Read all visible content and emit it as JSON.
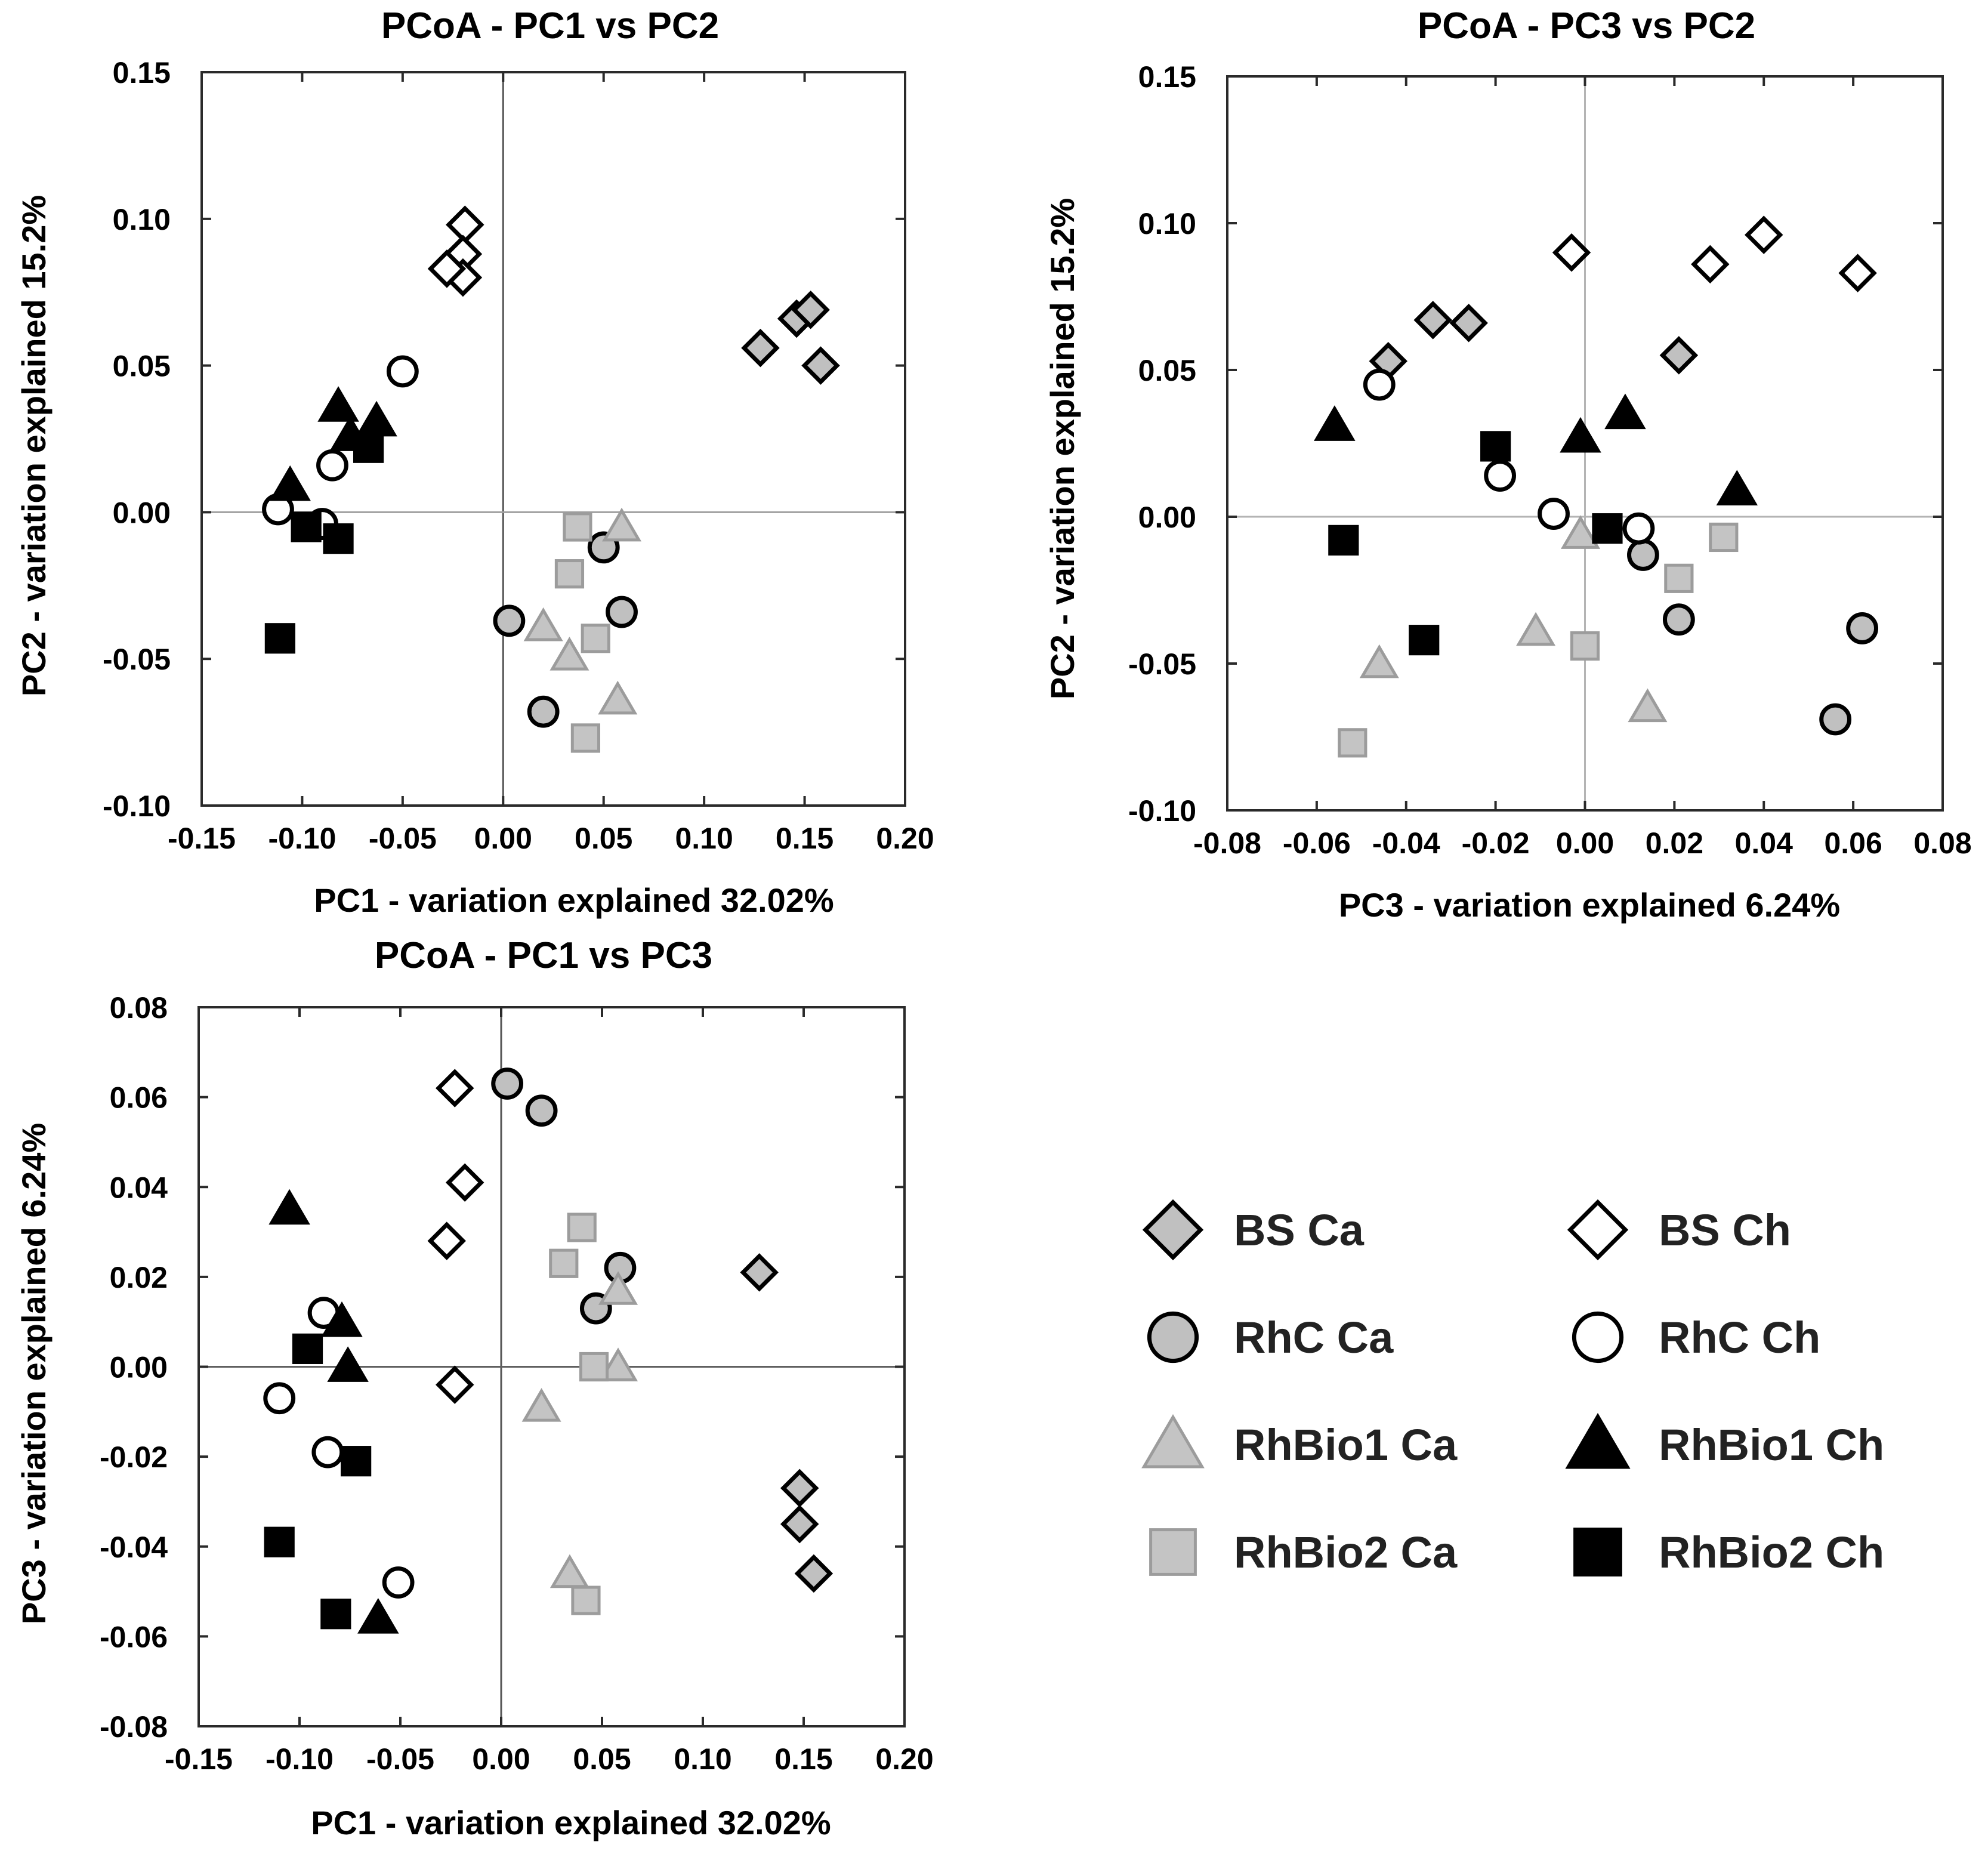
{
  "styles": {
    "BS Ca": {
      "shape": "diamond",
      "fill": "#c0c0c0",
      "stroke": "#000000"
    },
    "BS Ch": {
      "shape": "diamond",
      "fill": "#ffffff",
      "stroke": "#000000"
    },
    "RhC Ca": {
      "shape": "circle",
      "fill": "#c0c0c0",
      "stroke": "#000000"
    },
    "RhC Ch": {
      "shape": "circle",
      "fill": "#ffffff",
      "stroke": "#000000"
    },
    "RhBio1 Ca": {
      "shape": "triangle",
      "fill": "#c4c4c4",
      "stroke": "#9c9c9c"
    },
    "RhBio1 Ch": {
      "shape": "triangle",
      "fill": "#000000",
      "stroke": "#000000"
    },
    "RhBio2 Ca": {
      "shape": "square",
      "fill": "#c4c4c4",
      "stroke": "#9c9c9c"
    },
    "RhBio2 Ch": {
      "shape": "square",
      "fill": "#000000",
      "stroke": "#000000"
    }
  },
  "legend": {
    "items": [
      "BS Ca",
      "BS Ch",
      "RhC Ca",
      "RhC Ch",
      "RhBio1 Ca",
      "RhBio1 Ch",
      "RhBio2 Ca",
      "RhBio2 Ch"
    ]
  },
  "chart_data": [
    {
      "type": "scatter",
      "title": "PCoA - PC1 vs PC2",
      "xlabel": "PC1 - variation explained 32.02%",
      "ylabel": "PC2 - variation explained 15.2%",
      "xlim": [
        -0.15,
        0.2
      ],
      "ylim": [
        -0.1,
        0.15
      ],
      "xticks": [
        "-0.15",
        "-0.10",
        "-0.05",
        "0.00",
        "0.05",
        "0.10",
        "0.15",
        "0.20"
      ],
      "yticks": [
        "-0.10",
        "-0.05",
        "0.00",
        "0.05",
        "0.10",
        "0.15"
      ],
      "zero_lines": true,
      "series": [
        {
          "name": "BS Ca",
          "points": [
            [
              0.128,
              0.056
            ],
            [
              0.146,
              0.066
            ],
            [
              0.153,
              0.069
            ],
            [
              0.158,
              0.05
            ]
          ]
        },
        {
          "name": "BS Ch",
          "points": [
            [
              -0.019,
              0.098
            ],
            [
              -0.02,
              0.088
            ],
            [
              -0.02,
              0.08
            ],
            [
              -0.028,
              0.083
            ]
          ]
        },
        {
          "name": "RhC Ca",
          "points": [
            [
              0.003,
              -0.037
            ],
            [
              0.05,
              -0.012
            ],
            [
              0.059,
              -0.034
            ],
            [
              0.02,
              -0.068
            ]
          ]
        },
        {
          "name": "RhC Ch",
          "points": [
            [
              -0.05,
              0.048
            ],
            [
              -0.085,
              0.016
            ],
            [
              -0.112,
              0.001
            ],
            [
              -0.09,
              -0.004
            ]
          ]
        },
        {
          "name": "RhBio1 Ca",
          "points": [
            [
              0.059,
              -0.005
            ],
            [
              0.02,
              -0.039
            ],
            [
              0.033,
              -0.049
            ],
            [
              0.057,
              -0.064
            ]
          ]
        },
        {
          "name": "RhBio1 Ch",
          "points": [
            [
              -0.082,
              0.036
            ],
            [
              -0.063,
              0.031
            ],
            [
              -0.076,
              0.026
            ],
            [
              -0.106,
              0.009
            ]
          ]
        },
        {
          "name": "RhBio2 Ca",
          "points": [
            [
              0.037,
              -0.005
            ],
            [
              0.033,
              -0.021
            ],
            [
              0.046,
              -0.043
            ],
            [
              0.041,
              -0.077
            ]
          ]
        },
        {
          "name": "RhBio2 Ch",
          "points": [
            [
              -0.067,
              0.022
            ],
            [
              -0.098,
              -0.005
            ],
            [
              -0.082,
              -0.009
            ],
            [
              -0.111,
              -0.043
            ]
          ]
        }
      ]
    },
    {
      "type": "scatter",
      "title": "PCoA - PC3 vs PC2",
      "xlabel": "PC3 - variation explained 6.24%",
      "ylabel": "PC2 - variation explained 15.2%",
      "xlim": [
        -0.08,
        0.08
      ],
      "ylim": [
        -0.1,
        0.15
      ],
      "xticks": [
        "-0.08",
        "-0.06",
        "-0.04",
        "-0.02",
        "0.00",
        "0.02",
        "0.04",
        "0.06",
        "0.08"
      ],
      "yticks": [
        "-0.10",
        "-0.05",
        "0.00",
        "0.05",
        "0.10",
        "0.15"
      ],
      "zero_lines": true,
      "series": [
        {
          "name": "BS Ca",
          "points": [
            [
              -0.044,
              0.053
            ],
            [
              -0.034,
              0.067
            ],
            [
              -0.026,
              0.066
            ],
            [
              0.021,
              0.055
            ]
          ]
        },
        {
          "name": "BS Ch",
          "points": [
            [
              -0.003,
              0.09
            ],
            [
              0.028,
              0.086
            ],
            [
              0.04,
              0.096
            ],
            [
              0.061,
              0.083
            ]
          ]
        },
        {
          "name": "RhC Ca",
          "points": [
            [
              0.013,
              -0.013
            ],
            [
              0.021,
              -0.035
            ],
            [
              0.062,
              -0.038
            ],
            [
              0.056,
              -0.069
            ]
          ]
        },
        {
          "name": "RhC Ch",
          "points": [
            [
              -0.046,
              0.045
            ],
            [
              -0.019,
              0.014
            ],
            [
              -0.007,
              0.001
            ],
            [
              0.012,
              -0.004
            ]
          ]
        },
        {
          "name": "RhBio1 Ca",
          "points": [
            [
              -0.001,
              -0.006
            ],
            [
              -0.011,
              -0.039
            ],
            [
              -0.046,
              -0.05
            ],
            [
              0.014,
              -0.065
            ]
          ]
        },
        {
          "name": "RhBio1 Ch",
          "points": [
            [
              -0.056,
              0.031
            ],
            [
              -0.001,
              0.027
            ],
            [
              0.009,
              0.035
            ],
            [
              0.034,
              0.009
            ]
          ]
        },
        {
          "name": "RhBio2 Ca",
          "points": [
            [
              0.031,
              -0.007
            ],
            [
              0.021,
              -0.021
            ],
            [
              0.0,
              -0.044
            ],
            [
              -0.052,
              -0.077
            ]
          ]
        },
        {
          "name": "RhBio2 Ch",
          "points": [
            [
              -0.02,
              0.024
            ],
            [
              0.005,
              -0.004
            ],
            [
              -0.054,
              -0.008
            ],
            [
              -0.036,
              -0.042
            ]
          ]
        }
      ]
    },
    {
      "type": "scatter",
      "title": "PCoA - PC1 vs PC3",
      "xlabel": "PC1 - variation explained 32.02%",
      "ylabel": "PC3 - variation explained 6.24%",
      "xlim": [
        -0.15,
        0.2
      ],
      "ylim": [
        -0.08,
        0.08
      ],
      "xticks": [
        "-0.15",
        "-0.10",
        "-0.05",
        "0.00",
        "0.05",
        "0.10",
        "0.15",
        "0.20"
      ],
      "yticks": [
        "-0.08",
        "-0.06",
        "-0.04",
        "-0.02",
        "0.00",
        "0.02",
        "0.04",
        "0.06",
        "0.08"
      ],
      "zero_lines": true,
      "series": [
        {
          "name": "BS Ca",
          "points": [
            [
              0.128,
              0.021
            ],
            [
              0.148,
              -0.027
            ],
            [
              0.148,
              -0.035
            ],
            [
              0.155,
              -0.046
            ]
          ]
        },
        {
          "name": "BS Ch",
          "points": [
            [
              -0.023,
              0.062
            ],
            [
              -0.018,
              0.041
            ],
            [
              -0.027,
              0.028
            ],
            [
              -0.023,
              -0.004
            ]
          ]
        },
        {
          "name": "RhC Ca",
          "points": [
            [
              0.003,
              0.063
            ],
            [
              0.02,
              0.057
            ],
            [
              0.059,
              0.022
            ],
            [
              0.047,
              0.013
            ]
          ]
        },
        {
          "name": "RhC Ch",
          "points": [
            [
              -0.088,
              0.012
            ],
            [
              -0.11,
              -0.007
            ],
            [
              -0.086,
              -0.019
            ],
            [
              -0.051,
              -0.048
            ]
          ]
        },
        {
          "name": "RhBio1 Ca",
          "points": [
            [
              0.058,
              0.017
            ],
            [
              0.058,
              0.0
            ],
            [
              0.02,
              -0.009
            ],
            [
              0.034,
              -0.046
            ]
          ]
        },
        {
          "name": "RhBio1 Ch",
          "points": [
            [
              -0.105,
              0.035
            ],
            [
              -0.079,
              0.01
            ],
            [
              -0.076,
              0.0
            ],
            [
              -0.061,
              -0.056
            ]
          ]
        },
        {
          "name": "RhBio2 Ca",
          "points": [
            [
              0.04,
              0.031
            ],
            [
              0.031,
              0.023
            ],
            [
              0.046,
              0.0
            ],
            [
              0.042,
              -0.052
            ]
          ]
        },
        {
          "name": "RhBio2 Ch",
          "points": [
            [
              -0.096,
              0.004
            ],
            [
              -0.072,
              -0.021
            ],
            [
              -0.11,
              -0.039
            ],
            [
              -0.082,
              -0.055
            ]
          ]
        }
      ]
    }
  ]
}
